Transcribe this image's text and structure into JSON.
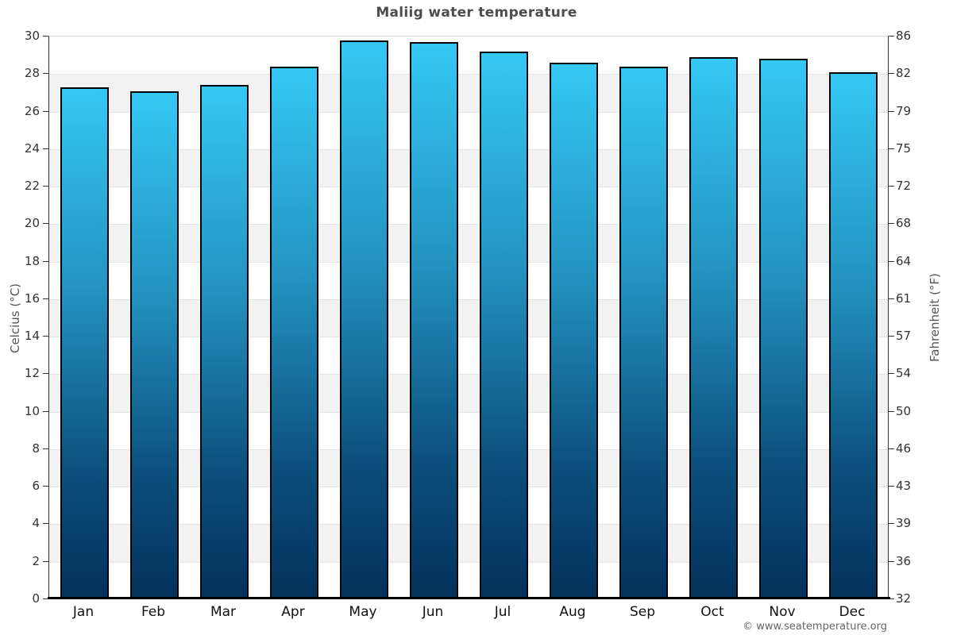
{
  "title": "Maliig water temperature",
  "axes": {
    "left_label": "Celcius (°C)",
    "right_label": "Fahrenheit (°F)",
    "left_ticks": [
      30,
      28,
      26,
      24,
      22,
      20,
      18,
      16,
      14,
      12,
      10,
      8,
      6,
      4,
      2,
      0
    ],
    "right_ticks": [
      86,
      82,
      79,
      75,
      72,
      68,
      64,
      61,
      57,
      54,
      50,
      46,
      43,
      39,
      36,
      32
    ]
  },
  "footer": {
    "copyright": "© www.seatemperature.org"
  },
  "colors": {
    "bar_gradient_top": "#35c8f4",
    "bar_gradient_mid": "#2392c0",
    "bar_gradient_bottom": "#03315a",
    "bar_border": "#000000",
    "band_gray": "#f2f2f2",
    "band_white": "#ffffff",
    "axis_line": "#333333",
    "baseline": "#000000",
    "title_text": "#4d4d4d",
    "tick_text": "#333333",
    "copyright_text": "#666666"
  },
  "chart_data": {
    "type": "bar",
    "title": "Maliig water temperature",
    "categories": [
      "Jan",
      "Feb",
      "Mar",
      "Apr",
      "May",
      "Jun",
      "Jul",
      "Aug",
      "Sep",
      "Oct",
      "Nov",
      "Dec"
    ],
    "values": [
      27.3,
      27.1,
      27.4,
      28.4,
      29.8,
      29.7,
      29.2,
      28.6,
      28.4,
      28.9,
      28.8,
      28.1
    ],
    "xlabel": "",
    "ylabel": "Celcius (°C)",
    "y2label": "Fahrenheit (°F)",
    "ylim": [
      0,
      30
    ],
    "y2lim": [
      32,
      86
    ],
    "ytick_step": 2,
    "grid": "alternating-horizontal-bands",
    "legend": "none"
  }
}
